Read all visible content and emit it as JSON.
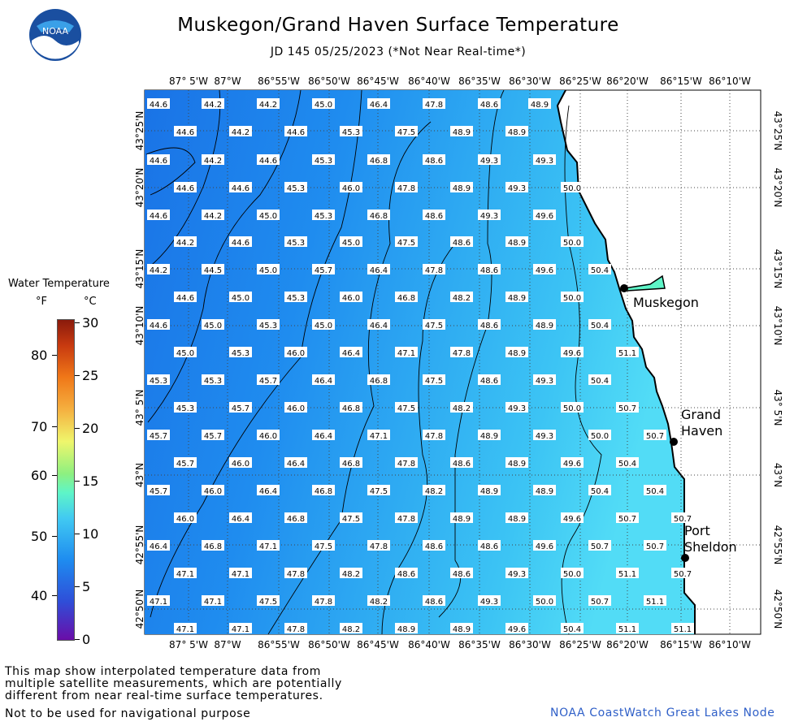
{
  "header": {
    "title": "Muskegon/Grand Haven Surface Temperature",
    "subtitle": "JD 145 05/25/2023 (*Not Near Real-time*)"
  },
  "logo": {
    "text": "NOAA"
  },
  "legend": {
    "title": "Water Temperature",
    "unit_f": "°F",
    "unit_c": "°C",
    "fahrenheit_ticks": [
      "80",
      "70",
      "60",
      "50",
      "40"
    ],
    "celsius_ticks": [
      "30",
      "25",
      "20",
      "15",
      "10",
      "5",
      "0"
    ],
    "colors": [
      "#6a0da8",
      "#2f4ed8",
      "#1e8cf0",
      "#41c9f2",
      "#5ef5c8",
      "#8ef080",
      "#eff66c",
      "#f5b040",
      "#f07818",
      "#c83a10",
      "#8a1a0c"
    ]
  },
  "axes": {
    "longitudes": [
      "87° 5'W",
      "87°W",
      "86°55'W",
      "86°50'W",
      "86°45'W",
      "86°40'W",
      "86°35'W",
      "86°30'W",
      "86°25'W",
      "86°20'W",
      "86°15'W",
      "86°10'W"
    ],
    "latitudes": [
      "43°25'N",
      "43°20'N",
      "43°15'N",
      "43°10'N",
      "43° 5'N",
      "43°N",
      "42°55'N",
      "42°50'N"
    ]
  },
  "temperature_grid": [
    [
      "44.6",
      "44.2",
      "44.2",
      "45.0",
      "46.4",
      "47.8",
      "48.6",
      "48.9"
    ],
    [
      "44.6",
      "44.2",
      "44.6",
      "45.3",
      "47.5",
      "48.9",
      "48.9"
    ],
    [
      "44.6",
      "44.2",
      "44.6",
      "45.3",
      "46.8",
      "48.6",
      "49.3",
      "49.3"
    ],
    [
      "44.6",
      "44.6",
      "45.3",
      "46.0",
      "47.8",
      "48.9",
      "49.3",
      "50.0"
    ],
    [
      "44.6",
      "44.2",
      "45.0",
      "45.3",
      "46.8",
      "48.6",
      "49.3",
      "49.6"
    ],
    [
      "44.2",
      "44.6",
      "45.3",
      "45.0",
      "47.5",
      "48.6",
      "48.9",
      "50.0"
    ],
    [
      "44.2",
      "44.5",
      "45.0",
      "45.7",
      "46.4",
      "47.8",
      "48.6",
      "49.6",
      "50.4"
    ],
    [
      "44.6",
      "45.0",
      "45.3",
      "46.0",
      "46.8",
      "48.2",
      "48.9",
      "50.0"
    ],
    [
      "44.6",
      "45.0",
      "45.3",
      "45.0",
      "46.4",
      "47.5",
      "48.6",
      "48.9",
      "50.4"
    ],
    [
      "45.0",
      "45.3",
      "46.0",
      "46.4",
      "47.1",
      "47.8",
      "48.9",
      "49.6",
      "51.1"
    ],
    [
      "45.3",
      "45.3",
      "45.7",
      "46.4",
      "46.8",
      "47.5",
      "48.6",
      "49.3",
      "50.4"
    ],
    [
      "45.3",
      "45.7",
      "46.0",
      "46.8",
      "47.5",
      "48.2",
      "49.3",
      "50.0",
      "50.7"
    ],
    [
      "45.7",
      "45.7",
      "46.0",
      "46.4",
      "47.1",
      "47.8",
      "48.9",
      "49.3",
      "50.0",
      "50.7"
    ],
    [
      "45.7",
      "46.0",
      "46.4",
      "46.8",
      "47.8",
      "48.6",
      "48.9",
      "49.6",
      "50.4"
    ],
    [
      "45.7",
      "46.0",
      "46.4",
      "46.8",
      "47.5",
      "48.2",
      "48.9",
      "48.9",
      "50.4",
      "50.4"
    ],
    [
      "46.0",
      "46.4",
      "46.8",
      "47.5",
      "47.8",
      "48.9",
      "48.9",
      "49.6",
      "50.7",
      "50.7"
    ],
    [
      "46.4",
      "46.8",
      "47.1",
      "47.5",
      "47.8",
      "48.6",
      "48.6",
      "49.6",
      "50.7",
      "50.7"
    ],
    [
      "47.1",
      "47.1",
      "47.8",
      "48.2",
      "48.6",
      "48.6",
      "49.3",
      "50.0",
      "51.1",
      "50.7"
    ],
    [
      "47.1",
      "47.1",
      "47.5",
      "47.8",
      "48.2",
      "48.6",
      "49.3",
      "50.0",
      "50.7",
      "51.1"
    ],
    [
      "47.1",
      "47.1",
      "47.8",
      "48.2",
      "48.9",
      "48.9",
      "49.6",
      "50.4",
      "51.1",
      "51.1"
    ]
  ],
  "cities": [
    {
      "name": "Muskegon"
    },
    {
      "name": "Grand Haven"
    },
    {
      "name": "Port Sheldon"
    }
  ],
  "footer": {
    "disclaimer": "This map show interpolated temperature data from\nmultiple satellite measurements, which are potentially\ndifferent from near real-time surface temperatures.",
    "warning": "Not to be used for navigational purpose",
    "credit": "NOAA CoastWatch Great Lakes Node"
  }
}
